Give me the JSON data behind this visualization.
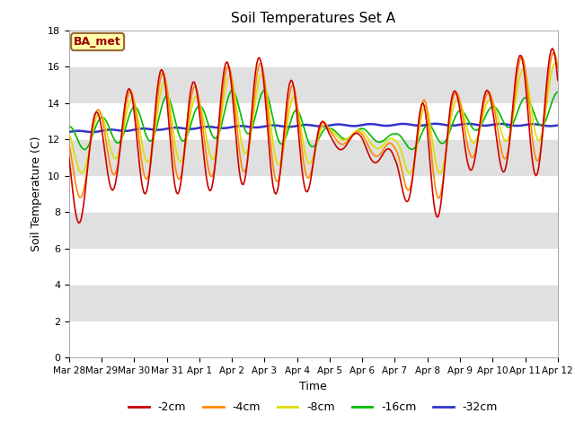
{
  "title": "Soil Temperatures Set A",
  "xlabel": "Time",
  "ylabel": "Soil Temperature (C)",
  "ylim": [
    0,
    18
  ],
  "yticks": [
    0,
    2,
    4,
    6,
    8,
    10,
    12,
    14,
    16,
    18
  ],
  "annotation": "BA_met",
  "background_color": "#ffffff",
  "legend_labels": [
    "-2cm",
    "-4cm",
    "-8cm",
    "-16cm",
    "-32cm"
  ],
  "line_colors": [
    "#cc0000",
    "#ff8800",
    "#dddd00",
    "#00bb00",
    "#3333cc"
  ],
  "line_widths": [
    1.2,
    1.2,
    1.2,
    1.2,
    1.8
  ],
  "xtick_labels": [
    "Mar 28",
    "Mar 29",
    "Mar 30",
    "Mar 31",
    "Apr 1",
    "Apr 2",
    "Apr 3",
    "Apr 4",
    "Apr 5",
    "Apr 6",
    "Apr 7",
    "Apr 8",
    "Apr 9",
    "Apr 10",
    "Apr 11",
    "Apr 12"
  ],
  "n_days": 15,
  "samples_per_day": 24
}
